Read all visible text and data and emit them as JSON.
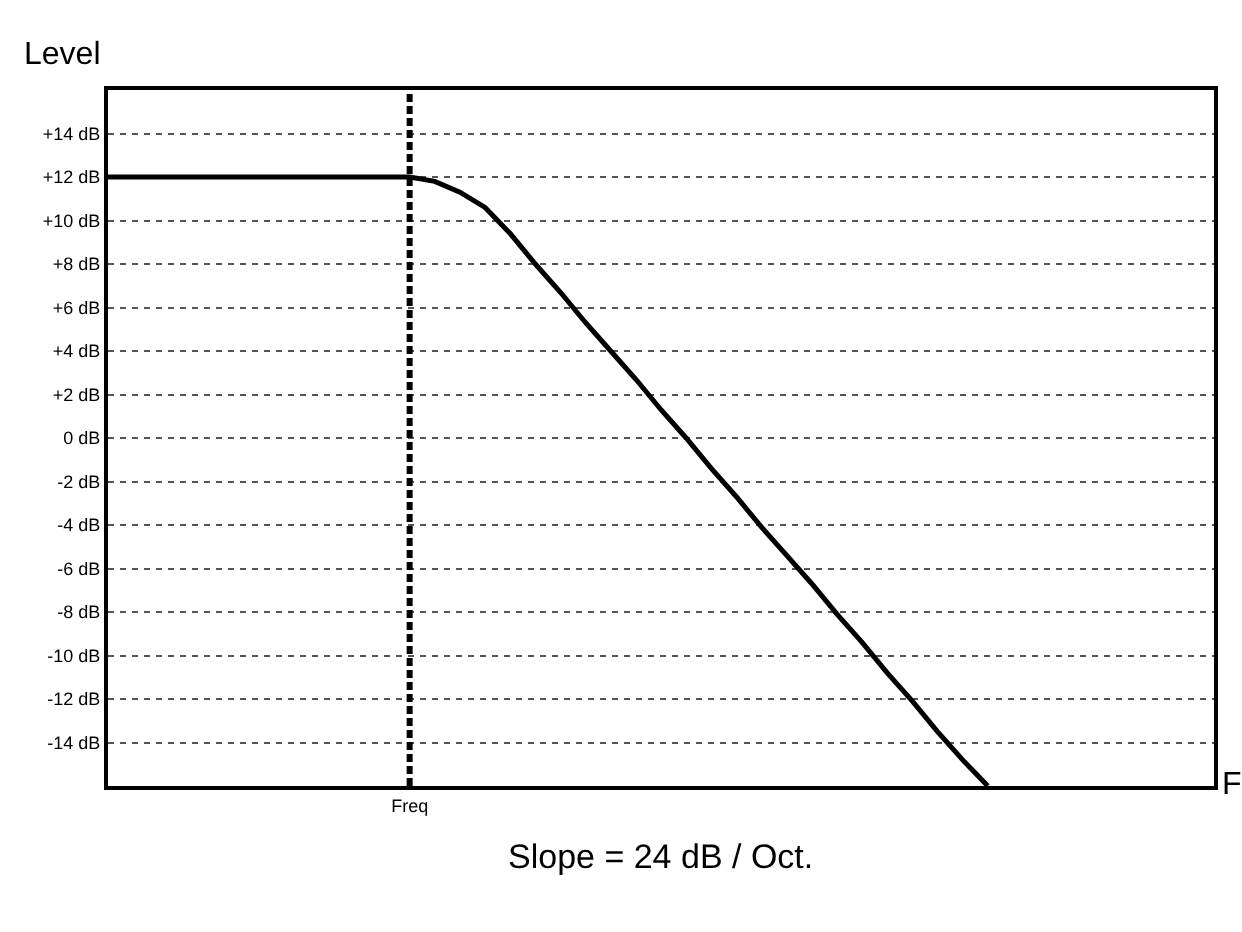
{
  "chart_data": {
    "type": "line",
    "ylabel": "Level",
    "xlabel": "F",
    "annotations": [
      "Slope = 24 dB / Oct."
    ],
    "categories": [
      null,
      null,
      null,
      null,
      null,
      null,
      null,
      null,
      null,
      null,
      null,
      null,
      "Freq",
      null,
      null,
      null,
      null,
      null,
      null,
      null,
      null,
      null,
      null,
      null,
      null,
      null,
      null,
      null,
      null,
      null,
      null,
      null,
      null,
      null,
      null,
      null,
      null,
      null,
      null,
      null,
      null,
      null,
      null,
      null,
      null
    ],
    "series": [
      {
        "color": "#000000",
        "values": [
          12,
          12,
          12,
          12,
          12,
          12,
          12,
          12,
          12,
          12,
          12,
          12,
          12,
          11.8,
          11.3,
          10.6,
          9.4,
          8.0,
          6.7,
          5.3,
          4.0,
          2.7,
          1.3,
          0.0,
          -1.4,
          -2.7,
          -4.1,
          -5.4,
          -6.7,
          -8.1,
          -9.4,
          -10.8,
          -12.1,
          -13.5,
          -14.8,
          -16,
          null,
          null,
          null,
          null,
          null,
          null,
          null,
          null,
          null
        ]
      }
    ],
    "ylim": [
      -16,
      16
    ],
    "yticks": [
      {
        "value": 14,
        "label": "+14 dB"
      },
      {
        "value": 12,
        "label": "+12 dB"
      },
      {
        "value": 10,
        "label": "+10 dB"
      },
      {
        "value": 8,
        "label": "+8 dB"
      },
      {
        "value": 6,
        "label": "+6 dB"
      },
      {
        "value": 4,
        "label": "+4 dB"
      },
      {
        "value": 2,
        "label": "+2 dB"
      },
      {
        "value": 0,
        "label": "0 dB"
      },
      {
        "value": -2,
        "label": "-2 dB"
      },
      {
        "value": -4,
        "label": "-4 dB"
      },
      {
        "value": -6,
        "label": "-6 dB"
      },
      {
        "value": -8,
        "label": "-8 dB"
      },
      {
        "value": -10,
        "label": "-10 dB"
      },
      {
        "value": -12,
        "label": "-12 dB"
      },
      {
        "value": -14,
        "label": "-14 dB"
      }
    ],
    "ref_lines": [
      {
        "axis": "x",
        "value": "Freq",
        "color": "#000000",
        "line_style": "dashed"
      }
    ],
    "grid": "y",
    "marker": "none",
    "line_style": "solid"
  }
}
